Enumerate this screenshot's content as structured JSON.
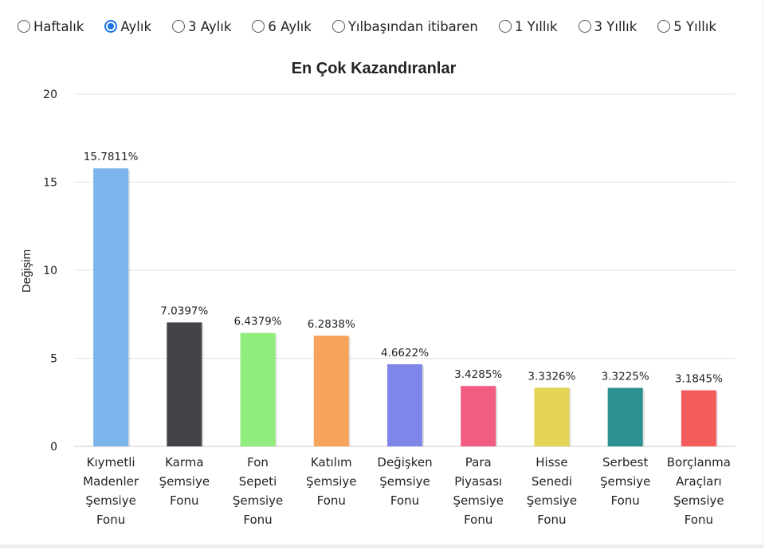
{
  "period_options": [
    {
      "label": "Haftalık",
      "checked": false
    },
    {
      "label": "Aylık",
      "checked": true
    },
    {
      "label": "3 Aylık",
      "checked": false
    },
    {
      "label": "6 Aylık",
      "checked": false
    },
    {
      "label": "Yılbaşından itibaren",
      "checked": false
    },
    {
      "label": "1 Yıllık",
      "checked": false
    },
    {
      "label": "3 Yıllık",
      "checked": false
    },
    {
      "label": "5 Yıllık",
      "checked": false
    }
  ],
  "chart_data": {
    "type": "bar",
    "title": "En Çok Kazandıranlar",
    "ylabel": "Değişim",
    "xlabel": "",
    "ylim": [
      0,
      20
    ],
    "yticks": [
      "0",
      "5",
      "10",
      "15",
      "20"
    ],
    "grid": true,
    "categories": [
      [
        "Kıymetli",
        "Madenler",
        "Şemsiye",
        "Fonu"
      ],
      [
        "Karma",
        "Şemsiye",
        "Fonu"
      ],
      [
        "Fon",
        "Sepeti",
        "Şemsiye",
        "Fonu"
      ],
      [
        "Katılım",
        "Şemsiye",
        "Fonu"
      ],
      [
        "Değişken",
        "Şemsiye",
        "Fonu"
      ],
      [
        "Para",
        "Piyasası",
        "Şemsiye",
        "Fonu"
      ],
      [
        "Hisse",
        "Senedi",
        "Şemsiye",
        "Fonu"
      ],
      [
        "Serbest",
        "Şemsiye",
        "Fonu"
      ],
      [
        "Borçlanma",
        "Araçları",
        "Şemsiye",
        "Fonu"
      ]
    ],
    "values": [
      15.7811,
      7.0397,
      6.4379,
      6.2838,
      4.6622,
      3.4285,
      3.3326,
      3.3225,
      3.1845
    ],
    "data_labels": [
      "15.7811%",
      "7.0397%",
      "6.4379%",
      "6.2838%",
      "4.6622%",
      "3.4285%",
      "3.3326%",
      "3.3225%",
      "3.1845%"
    ],
    "colors": [
      "#7cb5ec",
      "#434348",
      "#90ed7d",
      "#f7a35c",
      "#8085e9",
      "#f15c80",
      "#e4d354",
      "#2b908f",
      "#f45b5b"
    ]
  }
}
